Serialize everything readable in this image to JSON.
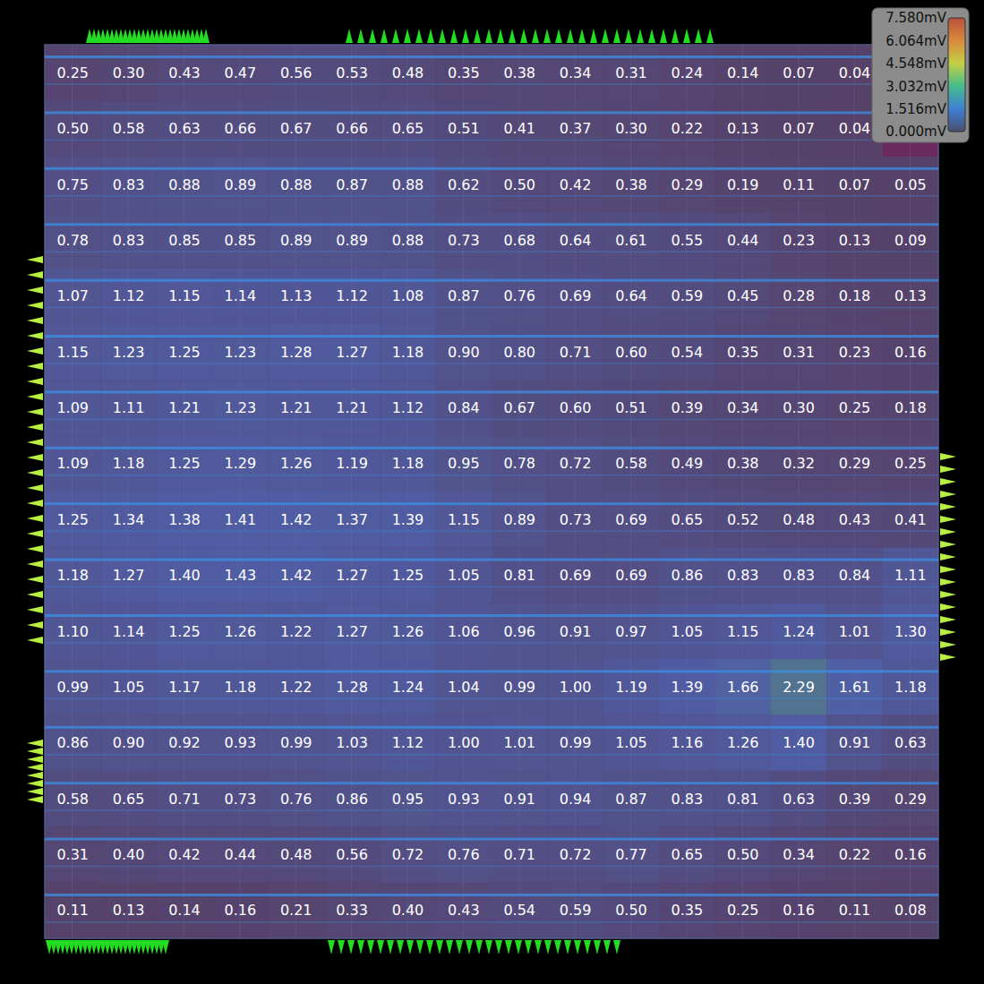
{
  "chart_data": {
    "type": "heatmap",
    "values": [
      [
        0.25,
        0.3,
        0.43,
        0.47,
        0.56,
        0.53,
        0.48,
        0.35,
        0.38,
        0.34,
        0.31,
        0.24,
        0.14,
        0.07,
        0.04,
        null
      ],
      [
        0.5,
        0.58,
        0.63,
        0.66,
        0.67,
        0.66,
        0.65,
        0.51,
        0.41,
        0.37,
        0.3,
        0.22,
        0.13,
        0.07,
        0.04,
        null
      ],
      [
        0.75,
        0.83,
        0.88,
        0.89,
        0.88,
        0.87,
        0.88,
        0.62,
        0.5,
        0.42,
        0.38,
        0.29,
        0.19,
        0.11,
        0.07,
        0.05
      ],
      [
        0.78,
        0.83,
        0.85,
        0.85,
        0.89,
        0.89,
        0.88,
        0.73,
        0.68,
        0.64,
        0.61,
        0.55,
        0.44,
        0.23,
        0.13,
        0.09
      ],
      [
        1.07,
        1.12,
        1.15,
        1.14,
        1.13,
        1.12,
        1.08,
        0.87,
        0.76,
        0.69,
        0.64,
        0.59,
        0.45,
        0.28,
        0.18,
        0.13
      ],
      [
        1.15,
        1.23,
        1.25,
        1.23,
        1.28,
        1.27,
        1.18,
        0.9,
        0.8,
        0.71,
        0.6,
        0.54,
        0.35,
        0.31,
        0.23,
        0.16
      ],
      [
        1.09,
        1.11,
        1.21,
        1.23,
        1.21,
        1.21,
        1.12,
        0.84,
        0.67,
        0.6,
        0.51,
        0.39,
        0.34,
        0.3,
        0.25,
        0.18
      ],
      [
        1.09,
        1.18,
        1.25,
        1.29,
        1.26,
        1.19,
        1.18,
        0.95,
        0.78,
        0.72,
        0.58,
        0.49,
        0.38,
        0.32,
        0.29,
        0.25
      ],
      [
        1.25,
        1.34,
        1.38,
        1.41,
        1.42,
        1.37,
        1.39,
        1.15,
        0.89,
        0.73,
        0.69,
        0.65,
        0.52,
        0.48,
        0.43,
        0.41
      ],
      [
        1.18,
        1.27,
        1.4,
        1.43,
        1.42,
        1.27,
        1.25,
        1.05,
        0.81,
        0.69,
        0.69,
        0.86,
        0.83,
        0.83,
        0.84,
        1.11
      ],
      [
        1.1,
        1.14,
        1.25,
        1.26,
        1.22,
        1.27,
        1.26,
        1.06,
        0.96,
        0.91,
        0.97,
        1.05,
        1.15,
        1.24,
        1.01,
        1.3
      ],
      [
        0.99,
        1.05,
        1.17,
        1.18,
        1.22,
        1.28,
        1.24,
        1.04,
        0.99,
        1.0,
        1.19,
        1.39,
        1.66,
        2.29,
        1.61,
        1.18
      ],
      [
        0.86,
        0.9,
        0.92,
        0.93,
        0.99,
        1.03,
        1.12,
        1.0,
        1.01,
        0.99,
        1.05,
        1.16,
        1.26,
        1.4,
        0.91,
        0.63
      ],
      [
        0.58,
        0.65,
        0.71,
        0.73,
        0.76,
        0.86,
        0.95,
        0.93,
        0.91,
        0.94,
        0.87,
        0.83,
        0.81,
        0.63,
        0.39,
        0.29
      ],
      [
        0.31,
        0.4,
        0.42,
        0.44,
        0.48,
        0.56,
        0.72,
        0.76,
        0.71,
        0.72,
        0.77,
        0.65,
        0.5,
        0.34,
        0.22,
        0.16
      ],
      [
        0.11,
        0.13,
        0.14,
        0.16,
        0.21,
        0.33,
        0.4,
        0.43,
        0.54,
        0.59,
        0.5,
        0.35,
        0.25,
        0.16,
        0.11,
        0.08
      ]
    ],
    "value_labels": [
      [
        "0.25",
        "0.30",
        "0.43",
        "0.47",
        "0.56",
        "0.53",
        "0.48",
        "0.35",
        "0.38",
        "0.34",
        "0.31",
        "0.24",
        "0.14",
        "0.07",
        "0.04",
        null
      ],
      [
        "0.50",
        "0.58",
        "0.63",
        "0.66",
        "0.67",
        "0.66",
        "0.65",
        "0.51",
        "0.41",
        "0.37",
        "0.30",
        "0.22",
        "0.13",
        "0.07",
        "0.04",
        null
      ],
      [
        "0.75",
        "0.83",
        "0.88",
        "0.89",
        "0.88",
        "0.87",
        "0.88",
        "0.62",
        "0.50",
        "0.42",
        "0.38",
        "0.29",
        "0.19",
        "0.11",
        "0.07",
        "0.05"
      ],
      [
        "0.78",
        "0.83",
        "0.85",
        "0.85",
        "0.89",
        "0.89",
        "0.88",
        "0.73",
        "0.68",
        "0.64",
        "0.61",
        "0.55",
        "0.44",
        "0.23",
        "0.13",
        "0.09"
      ],
      [
        "1.07",
        "1.12",
        "1.15",
        "1.14",
        "1.13",
        "1.12",
        "1.08",
        "0.87",
        "0.76",
        "0.69",
        "0.64",
        "0.59",
        "0.45",
        "0.28",
        "0.18",
        "0.13"
      ],
      [
        "1.15",
        "1.23",
        "1.25",
        "1.23",
        "1.28",
        "1.27",
        "1.18",
        "0.90",
        "0.80",
        "0.71",
        "0.60",
        "0.54",
        "0.35",
        "0.31",
        "0.23",
        "0.16"
      ],
      [
        "1.09",
        "1.11",
        "1.21",
        "1.23",
        "1.21",
        "1.21",
        "1.12",
        "0.84",
        "0.67",
        "0.60",
        "0.51",
        "0.39",
        "0.34",
        "0.30",
        "0.25",
        "0.18"
      ],
      [
        "1.09",
        "1.18",
        "1.25",
        "1.29",
        "1.26",
        "1.19",
        "1.18",
        "0.95",
        "0.78",
        "0.72",
        "0.58",
        "0.49",
        "0.38",
        "0.32",
        "0.29",
        "0.25"
      ],
      [
        "1.25",
        "1.34",
        "1.38",
        "1.41",
        "1.42",
        "1.37",
        "1.39",
        "1.15",
        "0.89",
        "0.73",
        "0.69",
        "0.65",
        "0.52",
        "0.48",
        "0.43",
        "0.41"
      ],
      [
        "1.18",
        "1.27",
        "1.40",
        "1.43",
        "1.42",
        "1.27",
        "1.25",
        "1.05",
        "0.81",
        "0.69",
        "0.69",
        "0.86",
        "0.83",
        "0.83",
        "0.84",
        "1.11"
      ],
      [
        "1.10",
        "1.14",
        "1.25",
        "1.26",
        "1.22",
        "1.27",
        "1.26",
        "1.06",
        "0.96",
        "0.91",
        "0.97",
        "1.05",
        "1.15",
        "1.24",
        "1.01",
        "1.30"
      ],
      [
        "0.99",
        "1.05",
        "1.17",
        "1.18",
        "1.22",
        "1.28",
        "1.24",
        "1.04",
        "0.99",
        "1.00",
        "1.19",
        "1.39",
        "1.66",
        "2.29",
        "1.61",
        "1.18"
      ],
      [
        "0.86",
        "0.90",
        "0.92",
        "0.93",
        "0.99",
        "1.03",
        "1.12",
        "1.00",
        "1.01",
        "0.99",
        "1.05",
        "1.16",
        "1.26",
        "1.40",
        "0.91",
        "0.63"
      ],
      [
        "0.58",
        "0.65",
        "0.71",
        "0.73",
        "0.76",
        "0.86",
        "0.95",
        "0.93",
        "0.91",
        "0.94",
        "0.87",
        "0.83",
        "0.81",
        "0.63",
        "0.39",
        "0.29"
      ],
      [
        "0.31",
        "0.40",
        "0.42",
        "0.44",
        "0.48",
        "0.56",
        "0.72",
        "0.76",
        "0.71",
        "0.72",
        "0.77",
        "0.65",
        "0.50",
        "0.34",
        "0.22",
        "0.16"
      ],
      [
        "0.11",
        "0.13",
        "0.14",
        "0.16",
        "0.21",
        "0.33",
        "0.40",
        "0.43",
        "0.54",
        "0.59",
        "0.50",
        "0.35",
        "0.25",
        "0.16",
        "0.11",
        "0.08"
      ]
    ],
    "data_labels": true,
    "colorbar": {
      "range": [
        0,
        7.58
      ],
      "ticks": [
        {
          "value": 0,
          "label": "0.000mV"
        },
        {
          "value": 1.516,
          "label": "1.516mV"
        },
        {
          "value": 3.032,
          "label": "3.032mV"
        },
        {
          "value": 4.548,
          "label": "4.548mV"
        },
        {
          "value": 6.064,
          "label": "6.064mV"
        },
        {
          "value": 7.58,
          "label": "7.580mV"
        }
      ]
    }
  }
}
